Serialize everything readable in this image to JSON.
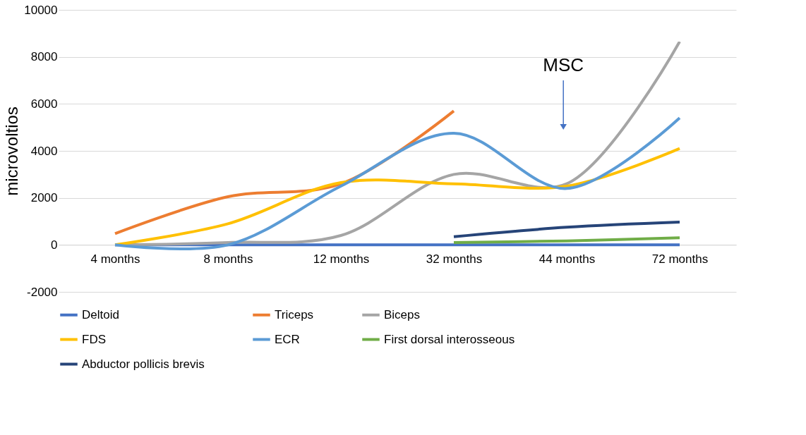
{
  "chart_data": {
    "type": "line",
    "ylabel": "microvoltios",
    "categories": [
      "4 months",
      "8 months",
      "12 months",
      "32 months",
      "44 months",
      "72 months"
    ],
    "series": [
      {
        "name": "Deltoid",
        "color": "#4472c4",
        "values": [
          0,
          0,
          0,
          0,
          0,
          0
        ]
      },
      {
        "name": "Triceps",
        "color": "#ed7d31",
        "values": [
          480,
          2050,
          2600,
          5700,
          null,
          null
        ]
      },
      {
        "name": "Biceps",
        "color": "#a5a5a5",
        "values": [
          0,
          100,
          400,
          3000,
          2600,
          8650
        ]
      },
      {
        "name": "FDS",
        "color": "#ffc000",
        "values": [
          0,
          900,
          2650,
          2600,
          2500,
          4100
        ]
      },
      {
        "name": "ECR",
        "color": "#5b9bd5",
        "values": [
          0,
          0,
          2500,
          4750,
          2400,
          5400
        ]
      },
      {
        "name": "First dorsal interosseous",
        "color": "#70ad47",
        "values": [
          null,
          null,
          null,
          100,
          170,
          300
        ]
      },
      {
        "name": "Abductor pollicis brevis",
        "color": "#264478",
        "values": [
          null,
          null,
          null,
          350,
          750,
          970
        ]
      }
    ],
    "ylim": [
      -2000,
      10000
    ],
    "yticks": [
      -2000,
      0,
      2000,
      4000,
      6000,
      8000,
      10000
    ],
    "grid": "y",
    "legend": "bottom",
    "marker": "none",
    "line_style": "solid",
    "annotations": [
      "MSC"
    ]
  }
}
